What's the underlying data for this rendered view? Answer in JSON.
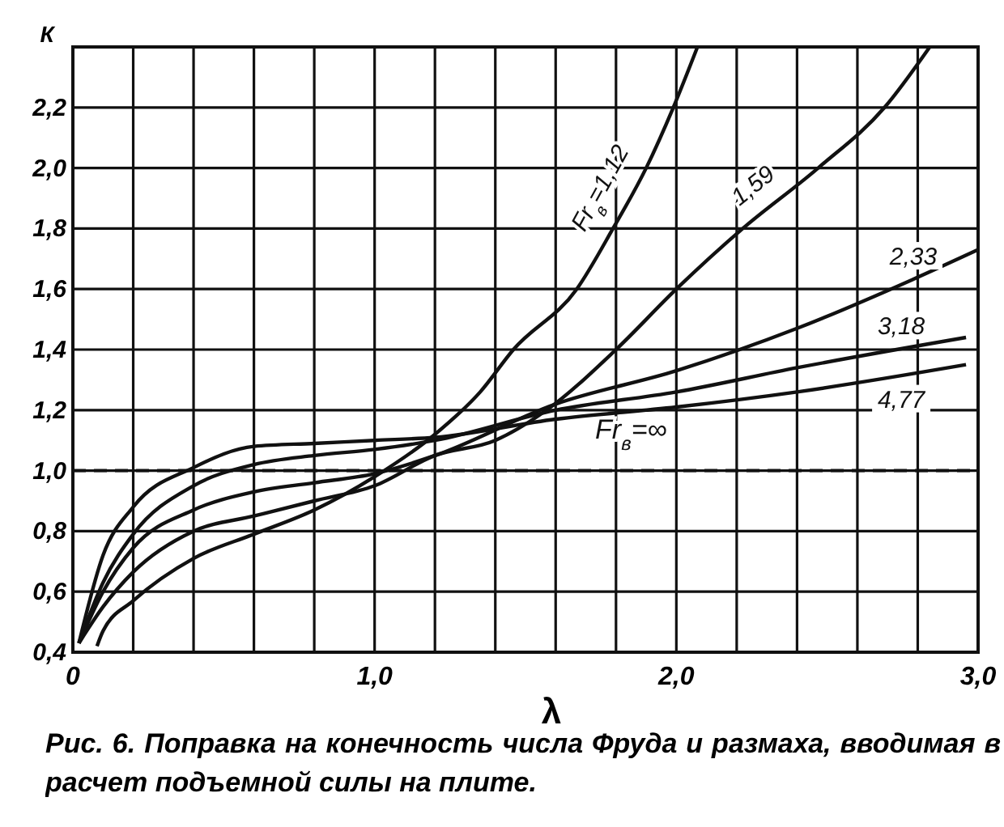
{
  "chart_data": {
    "type": "line",
    "xlabel": "λ",
    "ylabel": "К",
    "xlim": [
      0,
      3.0
    ],
    "ylim": [
      0.4,
      2.4
    ],
    "xticks": [
      {
        "value": 0,
        "label": "0"
      },
      {
        "value": 0.2,
        "label": null
      },
      {
        "value": 0.4,
        "label": null
      },
      {
        "value": 0.6,
        "label": null
      },
      {
        "value": 0.8,
        "label": null
      },
      {
        "value": 1.0,
        "label": "1,0"
      },
      {
        "value": 1.2,
        "label": null
      },
      {
        "value": 1.4,
        "label": null
      },
      {
        "value": 1.6,
        "label": null
      },
      {
        "value": 1.8,
        "label": null
      },
      {
        "value": 2.0,
        "label": "2,0"
      },
      {
        "value": 2.2,
        "label": null
      },
      {
        "value": 2.4,
        "label": null
      },
      {
        "value": 2.6,
        "label": null
      },
      {
        "value": 2.8,
        "label": null
      },
      {
        "value": 3.0,
        "label": "3,0"
      }
    ],
    "yticks": [
      {
        "value": 0.4,
        "label": "0,4"
      },
      {
        "value": 0.6,
        "label": "0,6"
      },
      {
        "value": 0.8,
        "label": "0,8"
      },
      {
        "value": 1.0,
        "label": "1,0"
      },
      {
        "value": 1.2,
        "label": "1,2"
      },
      {
        "value": 1.4,
        "label": "1,4"
      },
      {
        "value": 1.6,
        "label": "1,6"
      },
      {
        "value": 1.8,
        "label": "1,8"
      },
      {
        "value": 2.0,
        "label": "2,0"
      },
      {
        "value": 2.2,
        "label": "2,2"
      },
      {
        "value": 2.4,
        "label": null
      }
    ],
    "grid": true,
    "line_style": "solid",
    "marker": "none",
    "series": [
      {
        "name": "Fr$_{в}$=1,12",
        "color": "#111111",
        "x": [
          0.08,
          0.1,
          0.2,
          0.4,
          0.6,
          0.8,
          1.0,
          1.2,
          1.35,
          1.46,
          1.67,
          1.79,
          1.9,
          1.99,
          2.07
        ],
        "values": [
          0.42,
          0.47,
          0.57,
          0.71,
          0.79,
          0.87,
          0.98,
          1.12,
          1.26,
          1.4,
          1.6,
          1.8,
          2.0,
          2.2,
          2.4
        ]
      },
      {
        "name": "1,59",
        "color": "#111111",
        "x": [
          0.02,
          0.1,
          0.2,
          0.4,
          0.6,
          0.8,
          1.0,
          1.2,
          1.4,
          1.57,
          1.8,
          2.0,
          2.22,
          2.47,
          2.69,
          2.84
        ],
        "values": [
          0.43,
          0.55,
          0.665,
          0.8,
          0.85,
          0.9,
          0.95,
          1.05,
          1.1,
          1.2,
          1.4,
          1.6,
          1.8,
          2.0,
          2.2,
          2.4
        ]
      },
      {
        "name": "2,33",
        "color": "#111111",
        "x": [
          0.02,
          0.1,
          0.2,
          0.4,
          0.6,
          0.8,
          1.0,
          1.2,
          1.6,
          2.0,
          2.4,
          2.78,
          3.0
        ],
        "values": [
          0.43,
          0.6,
          0.745,
          0.87,
          0.93,
          0.96,
          0.99,
          1.05,
          1.22,
          1.33,
          1.47,
          1.63,
          1.73
        ]
      },
      {
        "name": "3,18",
        "color": "#111111",
        "x": [
          0.02,
          0.1,
          0.2,
          0.4,
          0.6,
          0.8,
          1.0,
          1.2,
          1.6,
          2.0,
          2.4,
          2.96
        ],
        "values": [
          0.43,
          0.63,
          0.79,
          0.95,
          1.02,
          1.05,
          1.07,
          1.1,
          1.2,
          1.26,
          1.34,
          1.44
        ]
      },
      {
        "name": "4,77",
        "color": "#111111",
        "x": [
          0.02,
          0.1,
          0.2,
          0.4,
          0.6,
          0.8,
          1.0,
          1.2,
          1.6,
          2.0,
          2.4,
          2.96
        ],
        "values": [
          0.43,
          0.72,
          0.88,
          1.01,
          1.08,
          1.09,
          1.1,
          1.11,
          1.17,
          1.21,
          1.26,
          1.35
        ]
      }
    ],
    "ref_lines": [
      {
        "axis": "y",
        "value": 1.0,
        "label": "Fr$_{в}$=∞",
        "line_style": "dashed",
        "color": "#111111"
      }
    ],
    "annotations": [
      "Рис. 6. Поправка на конечность числа Фруда и размаха, вводимая в расчет подъемной силы на плите."
    ]
  }
}
